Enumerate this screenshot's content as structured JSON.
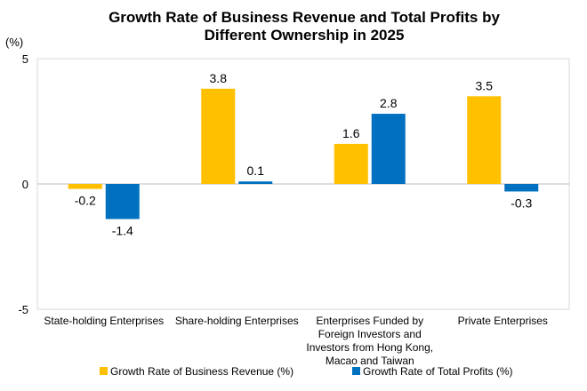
{
  "chart_data": {
    "type": "bar",
    "title_lines": [
      "Growth Rate of Business Revenue and Total Profits by",
      "Different Ownership in 2025"
    ],
    "y_unit": "(%)",
    "ylim": [
      -5,
      5
    ],
    "y_ticks": [
      "5",
      "0",
      "-5"
    ],
    "y_tick_values": [
      5,
      0,
      -5
    ],
    "grid": false,
    "legend_position": "bottom",
    "categories": [
      [
        "State-holding Enterprises"
      ],
      [
        "Share-holding Enterprises"
      ],
      [
        "Enterprises Funded by",
        "Foreign Investors and",
        "Investors from Hong Kong,",
        "Macao and Taiwan"
      ],
      [
        "Private Enterprises"
      ]
    ],
    "series": [
      {
        "name": "Growth Rate of Business Revenue (%)",
        "color": "#FFC000",
        "values": [
          -0.2,
          3.8,
          1.6,
          3.5
        ],
        "labels": [
          "-0.2",
          "3.8",
          "1.6",
          "3.5"
        ]
      },
      {
        "name": "Growth Rate of Total Profits (%)",
        "color": "#0070C0",
        "values": [
          -1.4,
          0.1,
          2.8,
          -0.3
        ],
        "labels": [
          "-1.4",
          "0.1",
          "2.8",
          "-0.3"
        ]
      }
    ]
  }
}
